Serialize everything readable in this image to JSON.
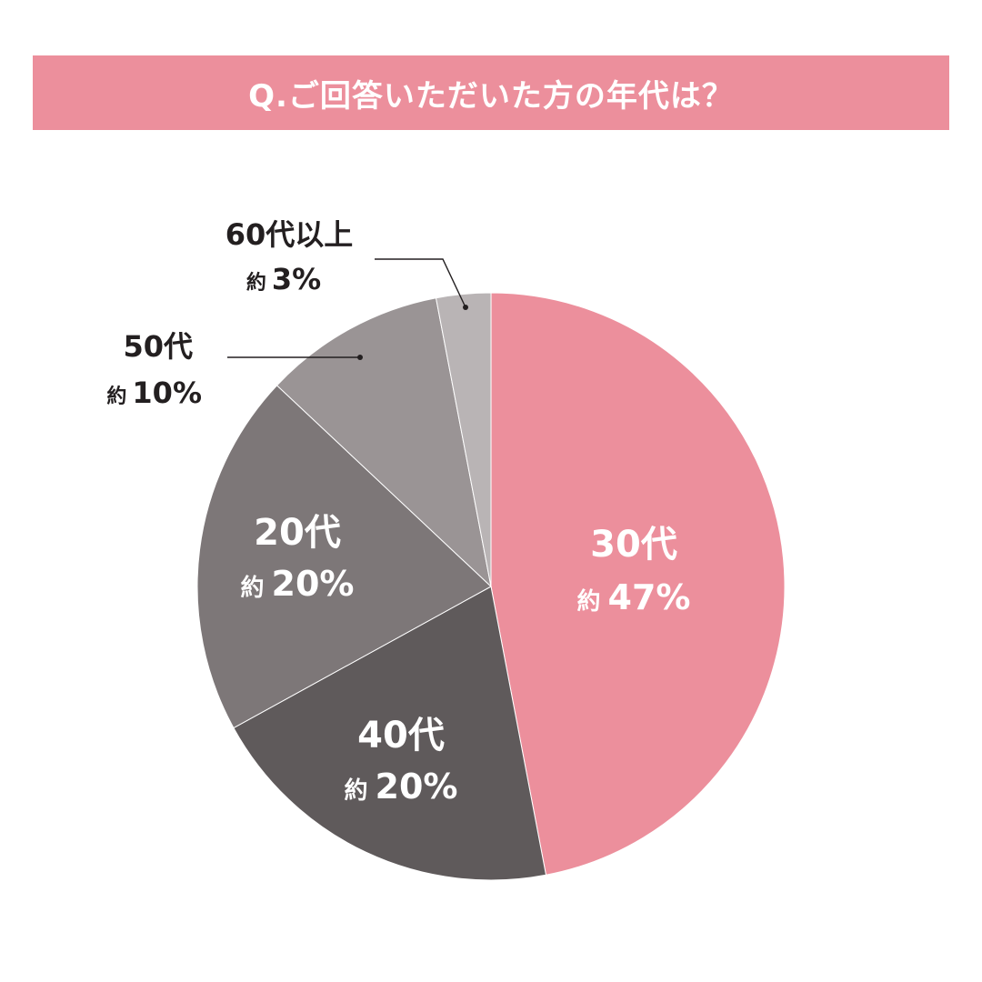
{
  "title": "Q.ご回答いただいた方の年代は？",
  "chart_data": {
    "type": "pie",
    "slices": [
      {
        "label": "30代",
        "approx": "約",
        "value": 47,
        "value_label": "47%",
        "color": "#ec8f9c"
      },
      {
        "label": "40代",
        "approx": "約",
        "value": 20,
        "value_label": "20%",
        "color": "#5f5a5b"
      },
      {
        "label": "20代",
        "approx": "約",
        "value": 20,
        "value_label": "20%",
        "color": "#7d7778"
      },
      {
        "label": "50代",
        "approx": "約",
        "value": 10,
        "value_label": "10%",
        "color": "#9a9495"
      },
      {
        "label": "60代以上",
        "approx": "約",
        "value": 3,
        "value_label": "3%",
        "color": "#b9b4b5"
      }
    ],
    "start": "12 o'clock",
    "direction": "clockwise",
    "legend": "none"
  }
}
